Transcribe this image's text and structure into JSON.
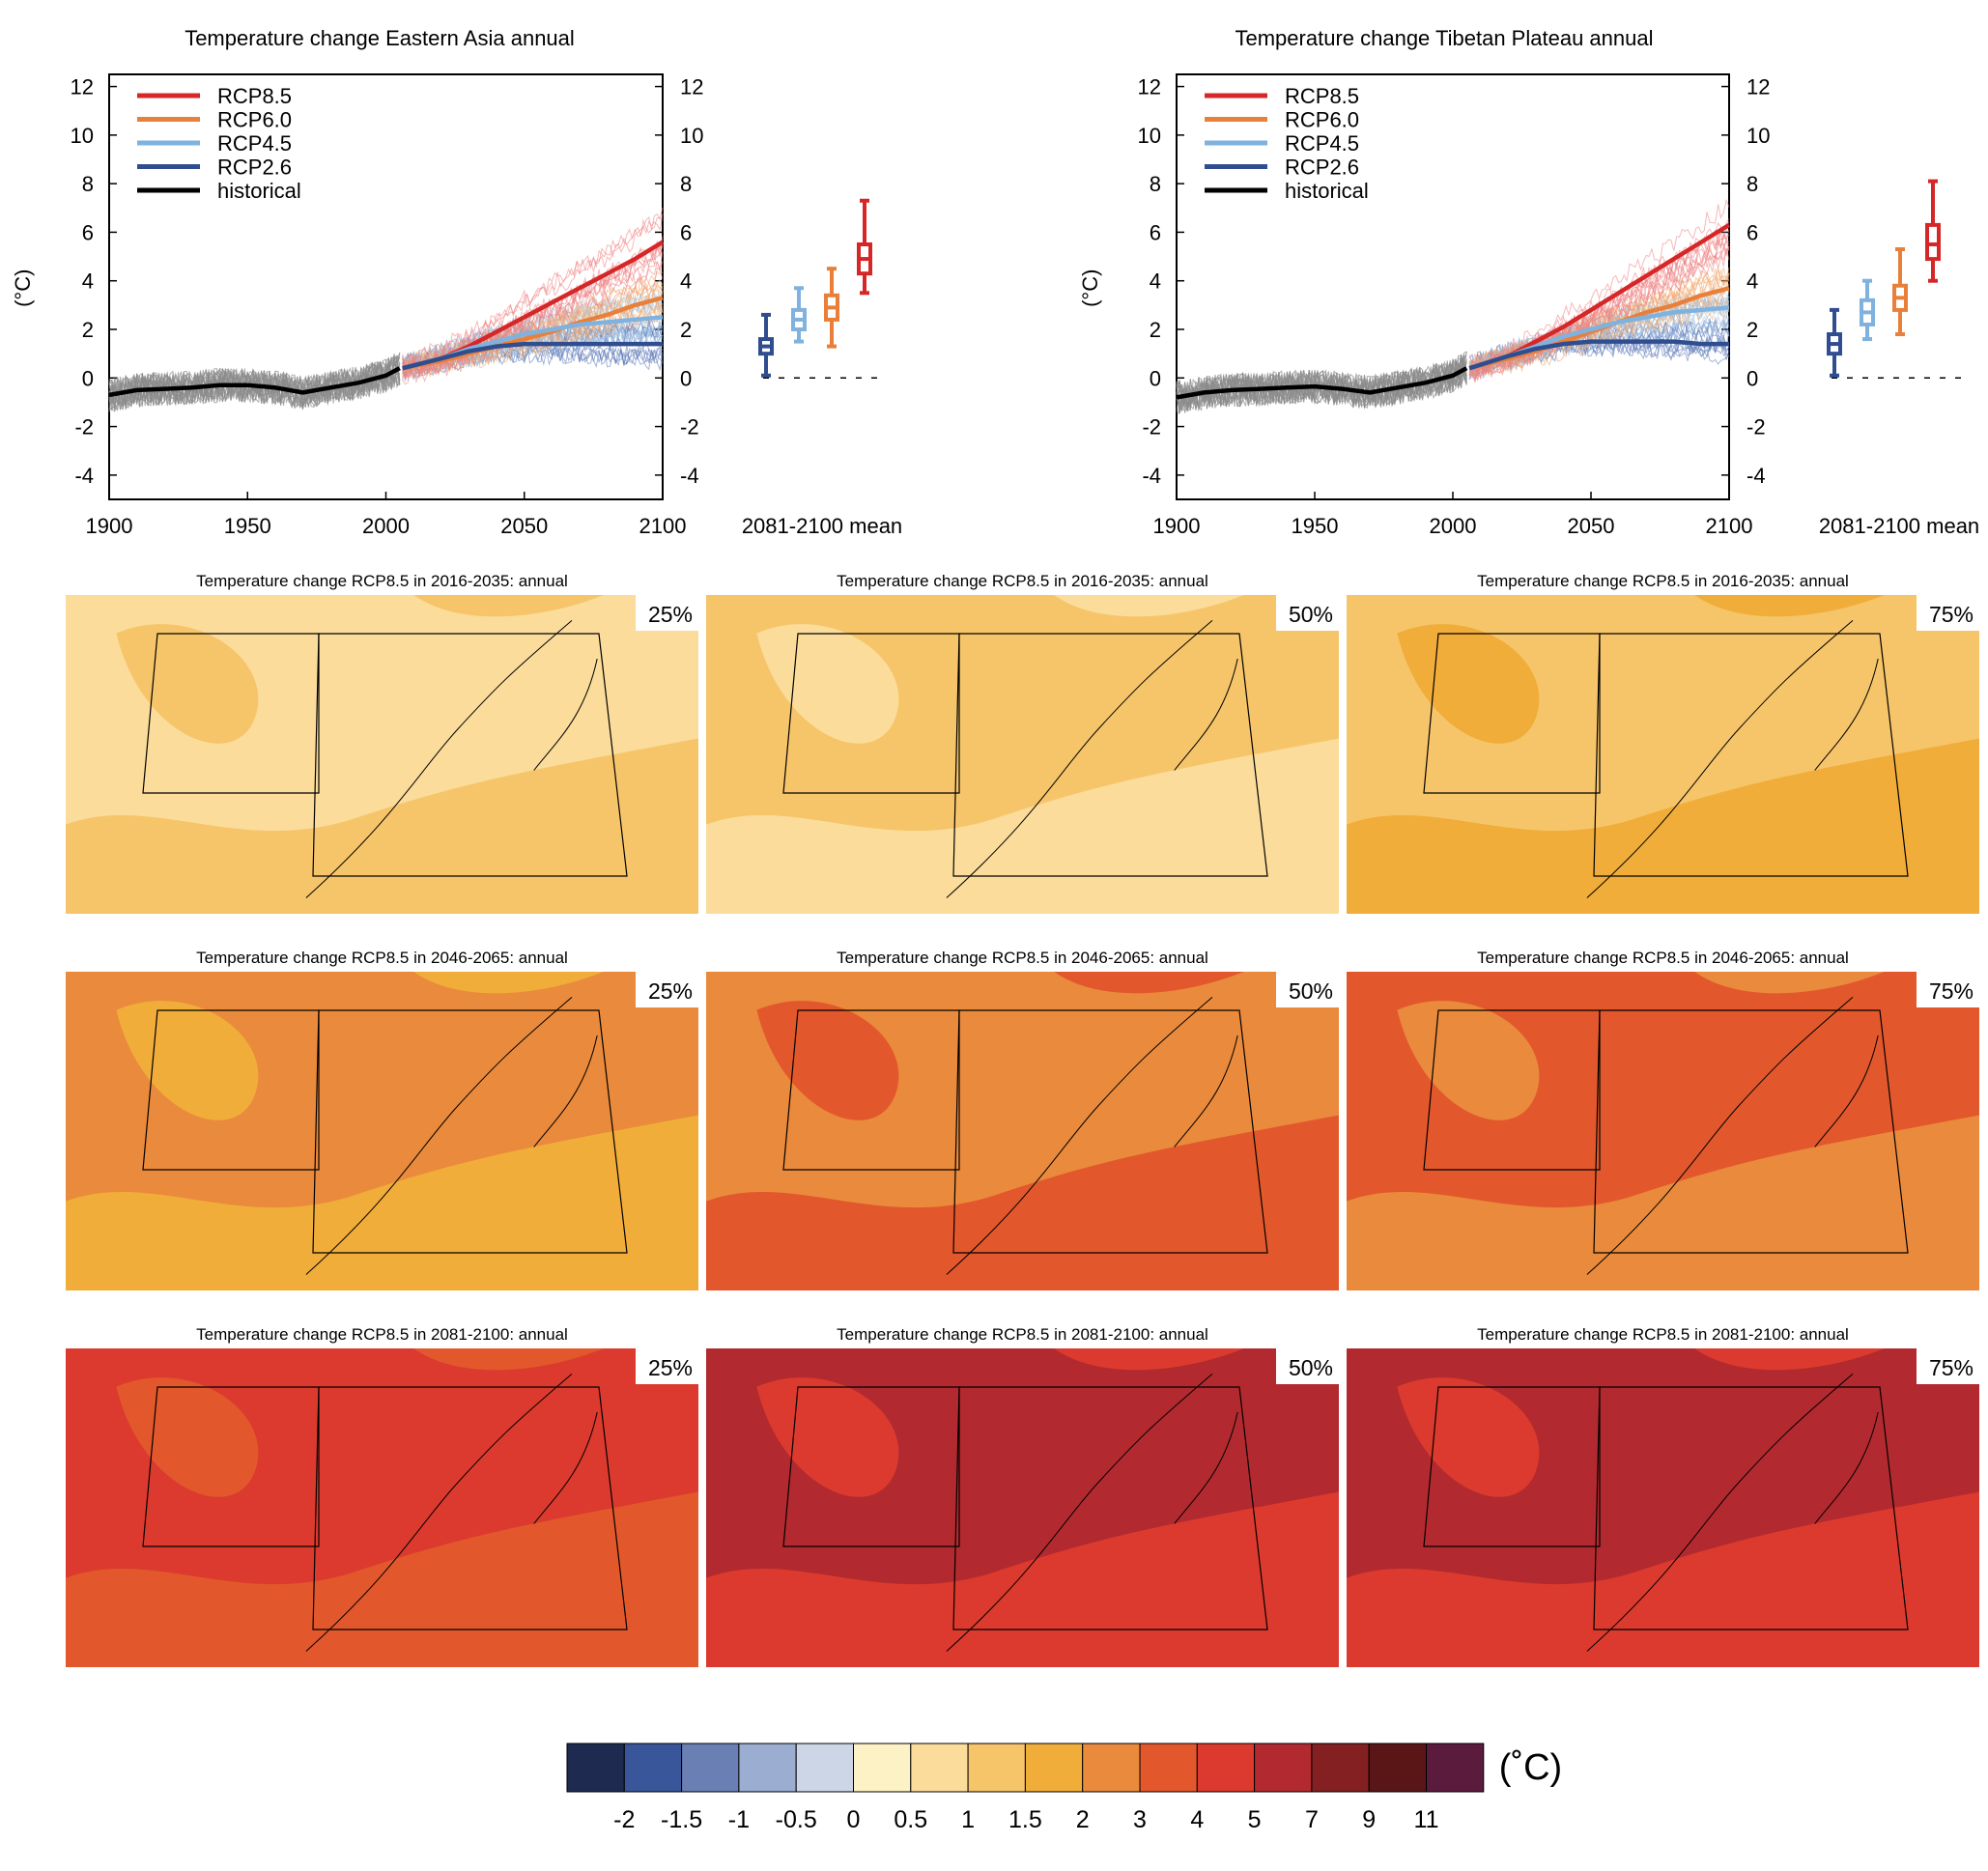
{
  "chart_data": {
    "timeseries": [
      {
        "type": "line",
        "title": "Temperature change Eastern Asia annual",
        "ylabel": "(°C)",
        "xlim": [
          1900,
          2100
        ],
        "ylim": [
          -5,
          12.5
        ],
        "x_ticks": [
          "1900",
          "1950",
          "2000",
          "2050",
          "2100"
        ],
        "y_ticks": [
          "12",
          "10",
          "8",
          "6",
          "4",
          "2",
          "0",
          "-2",
          "-4"
        ],
        "y_tick_values": [
          12,
          10,
          8,
          6,
          4,
          2,
          0,
          -2,
          -4
        ],
        "x_tick_values": [
          1900,
          1950,
          2000,
          2050,
          2100
        ],
        "box_axis_label": "2081-2100 mean",
        "series": [
          {
            "name": "RCP8.5",
            "color": "#d62728",
            "x": [
              2006,
              2020,
              2030,
              2040,
              2050,
              2060,
              2070,
              2080,
              2090,
              2100
            ],
            "y": [
              0.4,
              0.8,
              1.3,
              1.9,
              2.5,
              3.1,
              3.7,
              4.3,
              4.9,
              5.6
            ]
          },
          {
            "name": "RCP6.0",
            "color": "#e8803a",
            "x": [
              2006,
              2020,
              2030,
              2040,
              2050,
              2060,
              2070,
              2080,
              2090,
              2100
            ],
            "y": [
              0.4,
              0.7,
              1.0,
              1.3,
              1.6,
              1.9,
              2.3,
              2.6,
              3.0,
              3.3
            ]
          },
          {
            "name": "RCP4.5",
            "color": "#7fb2de",
            "x": [
              2006,
              2020,
              2030,
              2040,
              2050,
              2060,
              2070,
              2080,
              2090,
              2100
            ],
            "y": [
              0.4,
              0.8,
              1.2,
              1.5,
              1.8,
              2.0,
              2.2,
              2.3,
              2.4,
              2.5
            ]
          },
          {
            "name": "RCP2.6",
            "color": "#2f4d8f",
            "x": [
              2006,
              2020,
              2030,
              2040,
              2050,
              2060,
              2070,
              2080,
              2090,
              2100
            ],
            "y": [
              0.4,
              0.8,
              1.1,
              1.3,
              1.4,
              1.4,
              1.4,
              1.4,
              1.4,
              1.4
            ]
          },
          {
            "name": "historical",
            "color": "#000000",
            "x": [
              1900,
              1910,
              1920,
              1930,
              1940,
              1950,
              1960,
              1970,
              1980,
              1990,
              2000,
              2005
            ],
            "y": [
              -0.7,
              -0.5,
              -0.45,
              -0.4,
              -0.3,
              -0.3,
              -0.4,
              -0.6,
              -0.4,
              -0.2,
              0.1,
              0.4
            ]
          }
        ],
        "boxes": [
          {
            "name": "RCP2.6",
            "color": "#2f4d8f",
            "min": 0.1,
            "q1": 1.0,
            "median": 1.3,
            "q3": 1.6,
            "max": 2.6
          },
          {
            "name": "RCP4.5",
            "color": "#7fb2de",
            "min": 1.5,
            "q1": 2.0,
            "median": 2.4,
            "q3": 2.8,
            "max": 3.7
          },
          {
            "name": "RCP6.0",
            "color": "#e8803a",
            "min": 1.3,
            "q1": 2.4,
            "median": 2.9,
            "q3": 3.4,
            "max": 4.5
          },
          {
            "name": "RCP8.5",
            "color": "#d62728",
            "min": 3.5,
            "q1": 4.3,
            "median": 4.9,
            "q3": 5.5,
            "max": 7.3
          }
        ]
      },
      {
        "type": "line",
        "title": "Temperature change Tibetan Plateau annual",
        "ylabel": "(°C)",
        "xlim": [
          1900,
          2100
        ],
        "ylim": [
          -5,
          12.5
        ],
        "x_ticks": [
          "1900",
          "1950",
          "2000",
          "2050",
          "2100"
        ],
        "y_ticks": [
          "12",
          "10",
          "8",
          "6",
          "4",
          "2",
          "0",
          "-2",
          "-4"
        ],
        "y_tick_values": [
          12,
          10,
          8,
          6,
          4,
          2,
          0,
          -2,
          -4
        ],
        "x_tick_values": [
          1900,
          1950,
          2000,
          2050,
          2100
        ],
        "box_axis_label": "2081-2100 mean",
        "series": [
          {
            "name": "RCP8.5",
            "color": "#d62728",
            "x": [
              2006,
              2020,
              2030,
              2040,
              2050,
              2060,
              2070,
              2080,
              2090,
              2100
            ],
            "y": [
              0.4,
              0.9,
              1.5,
              2.1,
              2.8,
              3.5,
              4.2,
              4.9,
              5.6,
              6.3
            ]
          },
          {
            "name": "RCP6.0",
            "color": "#e8803a",
            "x": [
              2006,
              2020,
              2030,
              2040,
              2050,
              2060,
              2070,
              2080,
              2090,
              2100
            ],
            "y": [
              0.4,
              0.8,
              1.1,
              1.5,
              1.9,
              2.3,
              2.7,
              3.0,
              3.4,
              3.7
            ]
          },
          {
            "name": "RCP4.5",
            "color": "#7fb2de",
            "x": [
              2006,
              2020,
              2030,
              2040,
              2050,
              2060,
              2070,
              2080,
              2090,
              2100
            ],
            "y": [
              0.4,
              0.9,
              1.3,
              1.7,
              2.0,
              2.3,
              2.5,
              2.7,
              2.8,
              2.9
            ]
          },
          {
            "name": "RCP2.6",
            "color": "#2f4d8f",
            "x": [
              2006,
              2020,
              2030,
              2040,
              2050,
              2060,
              2070,
              2080,
              2090,
              2100
            ],
            "y": [
              0.4,
              0.9,
              1.2,
              1.4,
              1.5,
              1.5,
              1.5,
              1.5,
              1.4,
              1.4
            ]
          },
          {
            "name": "historical",
            "color": "#000000",
            "x": [
              1900,
              1910,
              1920,
              1930,
              1940,
              1950,
              1960,
              1970,
              1980,
              1990,
              2000,
              2005
            ],
            "y": [
              -0.8,
              -0.6,
              -0.5,
              -0.45,
              -0.4,
              -0.35,
              -0.45,
              -0.6,
              -0.4,
              -0.2,
              0.1,
              0.4
            ]
          }
        ],
        "boxes": [
          {
            "name": "RCP2.6",
            "color": "#2f4d8f",
            "min": 0.1,
            "q1": 1.0,
            "median": 1.4,
            "q3": 1.8,
            "max": 2.8
          },
          {
            "name": "RCP4.5",
            "color": "#7fb2de",
            "min": 1.6,
            "q1": 2.2,
            "median": 2.7,
            "q3": 3.2,
            "max": 4.0
          },
          {
            "name": "RCP6.0",
            "color": "#e8803a",
            "min": 1.8,
            "q1": 2.8,
            "median": 3.3,
            "q3": 3.8,
            "max": 5.3
          },
          {
            "name": "RCP8.5",
            "color": "#d62728",
            "min": 4.0,
            "q1": 4.9,
            "median": 5.5,
            "q3": 6.3,
            "max": 8.1
          }
        ]
      }
    ],
    "maps": [
      {
        "type": "heatmap",
        "title": "Temperature change RCP8.5 in 2016-2035: annual",
        "percentile": "25%",
        "base_color": "#fbdc9b",
        "patch_color": "#f6c56a"
      },
      {
        "type": "heatmap",
        "title": "Temperature change RCP8.5 in 2016-2035: annual",
        "percentile": "50%",
        "base_color": "#f6c56a",
        "patch_color": "#fbdc9b"
      },
      {
        "type": "heatmap",
        "title": "Temperature change RCP8.5 in 2016-2035: annual",
        "percentile": "75%",
        "base_color": "#f6c56a",
        "patch_color": "#f1ad3a"
      },
      {
        "type": "heatmap",
        "title": "Temperature change RCP8.5 in 2046-2065: annual",
        "percentile": "25%",
        "base_color": "#ea8a3c",
        "patch_color": "#f1ad3a"
      },
      {
        "type": "heatmap",
        "title": "Temperature change RCP8.5 in 2046-2065: annual",
        "percentile": "50%",
        "base_color": "#ea8a3c",
        "patch_color": "#e2582c"
      },
      {
        "type": "heatmap",
        "title": "Temperature change RCP8.5 in 2046-2065: annual",
        "percentile": "75%",
        "base_color": "#e2582c",
        "patch_color": "#ea8a3c"
      },
      {
        "type": "heatmap",
        "title": "Temperature change RCP8.5 in 2081-2100: annual",
        "percentile": "25%",
        "base_color": "#dc3a2e",
        "patch_color": "#e2582c"
      },
      {
        "type": "heatmap",
        "title": "Temperature change RCP8.5 in 2081-2100: annual",
        "percentile": "50%",
        "base_color": "#b22a2f",
        "patch_color": "#dc3a2e"
      },
      {
        "type": "heatmap",
        "title": "Temperature change RCP8.5 in 2081-2100: annual",
        "percentile": "75%",
        "base_color": "#b22a2f",
        "patch_color": "#dc3a2e"
      }
    ],
    "colorbar": {
      "unit": "(˚C)",
      "labels": [
        "-2",
        "-1.5",
        "-1",
        "-0.5",
        "0",
        "0.5",
        "1",
        "1.5",
        "2",
        "3",
        "4",
        "5",
        "7",
        "9",
        "11"
      ],
      "colors": [
        "#1e2a4f",
        "#3a569a",
        "#6a7fb3",
        "#9badd1",
        "#cdd6e6",
        "#fdf2c6",
        "#fbdc9b",
        "#f6c56a",
        "#f1ad3a",
        "#ea8a3c",
        "#e2582c",
        "#dc3a2e",
        "#b22a2f",
        "#841f22",
        "#5a1617",
        "#5b1b3c"
      ]
    }
  }
}
